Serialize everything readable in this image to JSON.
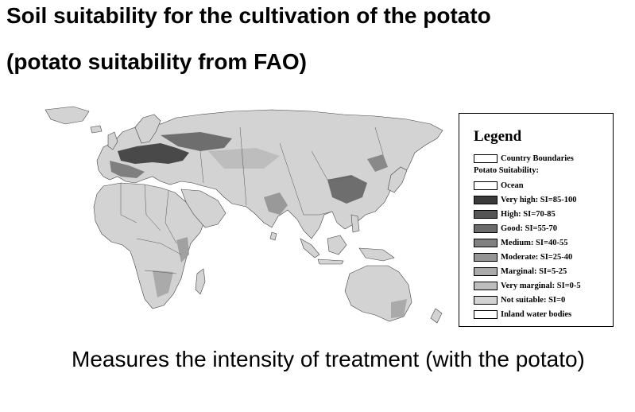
{
  "slide": {
    "title": "Soil suitability for the cultivation of the potato",
    "subtitle": "(potato suitability from FAO)",
    "caption": "Measures the intensity of treatment (with the potato)"
  },
  "legend": {
    "title": "Legend",
    "boundaries": {
      "label": "Country Boundaries",
      "color": "#ffffff"
    },
    "suitability_heading": "Potato Suitability:",
    "classes": [
      {
        "label": "Ocean",
        "color": "#ffffff"
      },
      {
        "label": "Very high: SI=85-100",
        "color": "#3a3a3a"
      },
      {
        "label": "High: SI=70-85",
        "color": "#555555"
      },
      {
        "label": "Good: SI=55-70",
        "color": "#6a6a6a"
      },
      {
        "label": "Medium: SI=40-55",
        "color": "#808080"
      },
      {
        "label": "Moderate: SI=25-40",
        "color": "#959595"
      },
      {
        "label": "Marginal: SI=5-25",
        "color": "#aaaaaa"
      },
      {
        "label": "Very marginal: SI=0-5",
        "color": "#bdbdbd"
      },
      {
        "label": "Not suitable: SI=0",
        "color": "#d3d3d3"
      },
      {
        "label": "Inland water bodies",
        "color": "#ffffff"
      }
    ]
  }
}
